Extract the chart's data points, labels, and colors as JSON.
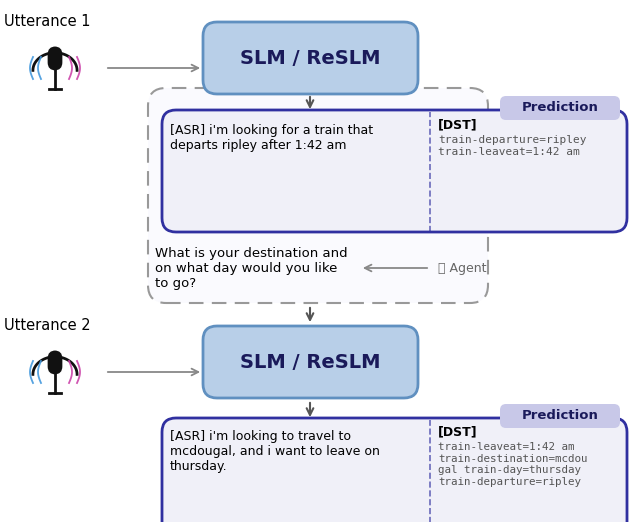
{
  "bg_color": "#ffffff",
  "utterance1_label": "Utterance 1",
  "utterance2_label": "Utterance 2",
  "slm_label": "SLM / ReSLM",
  "slm_fill": "#b8cfe8",
  "slm_edge": "#6090c0",
  "pred_fill": "#f0f0f8",
  "pred_edge": "#3030a0",
  "pred_label": "Prediction",
  "pred_label_bg": "#c8c8e8",
  "dashed_edge": "#999999",
  "asr_text1": "[ASR] i'm looking for a train that\ndeparts ripley after 1:42 am",
  "dst_label1": "[DST]",
  "dst_text1": "train-departure=ripley\ntrain-leaveat=1:42 am",
  "asr_text2": "[ASR] i'm looking to travel to\nmcdougal, and i want to leave on\nthursday.",
  "dst_label2": "[DST]",
  "dst_text2": "train-leaveat=1:42 am\ntrain-destination=mcdou\ngal train-day=thursday\ntrain-departure=ripley",
  "agent_response": "What is your destination and\non what day would you like\nto go?",
  "wave_color_left": "#4499dd",
  "wave_color_right": "#cc44aa",
  "mic_color": "#111111"
}
